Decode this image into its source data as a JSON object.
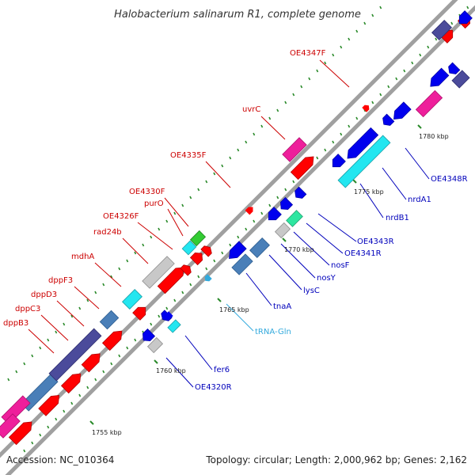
{
  "title": "Halobacterium salinarum R1, complete genome",
  "footer": {
    "accession": "Accession: NC_010364",
    "topology": "Topology: circular; Length: 2,000,962 bp; Genes: 2,162"
  },
  "colors": {
    "forward": "#ff0000",
    "reverse": "#0000ee",
    "steelblue": "#4a7fb8",
    "slateblue": "#4b4b9b",
    "pink": "#ee1f9b",
    "cyan": "#23e6f0",
    "lightgray": "#c8c8c8",
    "trna": "#3399dd",
    "backbone": "#a0a0a0",
    "scale_tick": "#2a8a2a"
  },
  "tick_labels": [
    "1755 kbp",
    "1760 kbp",
    "1765 kbp",
    "1770 kbp",
    "1775 kbp",
    "1780 kbp"
  ],
  "forward_labels": [
    "OE4347F",
    "uvrC",
    "OE4335F",
    "OE4330F",
    "purO",
    "OE4326F",
    "rad24b",
    "mdhA",
    "dppF3",
    "dppD3",
    "dppC3",
    "dppB3"
  ],
  "reverse_labels": [
    "OE4348R",
    "nrdA1",
    "nrdB1",
    "OE4343R",
    "OE4341R",
    "nosF",
    "nosY",
    "lysC",
    "tnaA",
    "fer6",
    "OE4320R"
  ],
  "trna_labels": [
    "tRNA-Gln"
  ]
}
